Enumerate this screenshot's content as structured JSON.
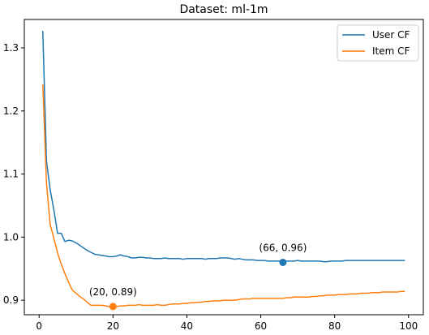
{
  "chart_data": {
    "type": "line",
    "title": "Dataset: ml-1m",
    "xlabel": "",
    "ylabel": "",
    "xlim": [
      -4,
      104
    ],
    "ylim": [
      0.877,
      1.345
    ],
    "xticks": [
      0,
      20,
      40,
      60,
      80,
      100
    ],
    "yticks": [
      0.9,
      1.0,
      1.1,
      1.2,
      1.3
    ],
    "xtick_labels": [
      "0",
      "20",
      "40",
      "60",
      "80",
      "100"
    ],
    "ytick_labels": [
      "0.9",
      "1.0",
      "1.1",
      "1.2",
      "1.3"
    ],
    "grid": false,
    "legend_position": "top-right",
    "series": [
      {
        "name": "User CF",
        "color": "#1f77b4",
        "x": [
          1,
          2,
          3,
          4,
          5,
          6,
          7,
          8,
          9,
          10,
          11,
          12,
          13,
          14,
          15,
          16,
          17,
          18,
          19,
          20,
          21,
          22,
          23,
          24,
          25,
          26,
          27,
          28,
          29,
          30,
          31,
          32,
          33,
          34,
          35,
          36,
          37,
          38,
          39,
          40,
          41,
          42,
          43,
          44,
          45,
          46,
          47,
          48,
          49,
          50,
          51,
          52,
          53,
          54,
          55,
          56,
          57,
          58,
          59,
          60,
          61,
          62,
          63,
          64,
          65,
          66,
          67,
          68,
          69,
          70,
          71,
          72,
          73,
          74,
          75,
          76,
          77,
          78,
          79,
          80,
          81,
          82,
          83,
          84,
          85,
          86,
          87,
          88,
          89,
          90,
          91,
          92,
          93,
          94,
          95,
          96,
          97,
          98,
          99
        ],
        "y": [
          1.327,
          1.12,
          1.075,
          1.043,
          1.006,
          1.006,
          0.993,
          0.995,
          0.994,
          0.991,
          0.987,
          0.983,
          0.979,
          0.976,
          0.973,
          0.972,
          0.971,
          0.97,
          0.969,
          0.969,
          0.97,
          0.972,
          0.97,
          0.969,
          0.967,
          0.967,
          0.968,
          0.968,
          0.967,
          0.967,
          0.966,
          0.966,
          0.966,
          0.967,
          0.966,
          0.966,
          0.966,
          0.966,
          0.965,
          0.966,
          0.966,
          0.966,
          0.966,
          0.966,
          0.965,
          0.966,
          0.966,
          0.966,
          0.967,
          0.967,
          0.967,
          0.966,
          0.965,
          0.966,
          0.965,
          0.964,
          0.964,
          0.964,
          0.963,
          0.963,
          0.963,
          0.962,
          0.962,
          0.962,
          0.962,
          0.961,
          0.962,
          0.962,
          0.962,
          0.963,
          0.962,
          0.962,
          0.962,
          0.962,
          0.962,
          0.962,
          0.961,
          0.961,
          0.962,
          0.962,
          0.962,
          0.962,
          0.963,
          0.963,
          0.963,
          0.963,
          0.963,
          0.963,
          0.963,
          0.963,
          0.963,
          0.963,
          0.963,
          0.963,
          0.963,
          0.963,
          0.963,
          0.963,
          0.963
        ]
      },
      {
        "name": "Item CF",
        "color": "#ff7f0e",
        "x": [
          1,
          2,
          3,
          4,
          5,
          6,
          7,
          8,
          9,
          10,
          11,
          12,
          13,
          14,
          15,
          16,
          17,
          18,
          19,
          20,
          21,
          22,
          23,
          24,
          25,
          26,
          27,
          28,
          29,
          30,
          31,
          32,
          33,
          34,
          35,
          36,
          37,
          38,
          39,
          40,
          41,
          42,
          43,
          44,
          45,
          46,
          47,
          48,
          49,
          50,
          51,
          52,
          53,
          54,
          55,
          56,
          57,
          58,
          59,
          60,
          61,
          62,
          63,
          64,
          65,
          66,
          67,
          68,
          69,
          70,
          71,
          72,
          73,
          74,
          75,
          76,
          77,
          78,
          79,
          80,
          81,
          82,
          83,
          84,
          85,
          86,
          87,
          88,
          89,
          90,
          91,
          92,
          93,
          94,
          95,
          96,
          97,
          98,
          99
        ],
        "y": [
          1.242,
          1.085,
          1.02,
          0.998,
          0.975,
          0.957,
          0.942,
          0.928,
          0.916,
          0.911,
          0.906,
          0.902,
          0.897,
          0.892,
          0.892,
          0.892,
          0.892,
          0.891,
          0.89,
          0.89,
          0.89,
          0.891,
          0.891,
          0.892,
          0.892,
          0.892,
          0.893,
          0.892,
          0.892,
          0.892,
          0.892,
          0.893,
          0.892,
          0.892,
          0.893,
          0.894,
          0.894,
          0.894,
          0.895,
          0.895,
          0.896,
          0.896,
          0.897,
          0.897,
          0.898,
          0.898,
          0.899,
          0.899,
          0.899,
          0.9,
          0.9,
          0.9,
          0.9,
          0.901,
          0.902,
          0.902,
          0.902,
          0.903,
          0.903,
          0.903,
          0.903,
          0.903,
          0.903,
          0.903,
          0.903,
          0.903,
          0.904,
          0.904,
          0.905,
          0.905,
          0.905,
          0.905,
          0.905,
          0.906,
          0.906,
          0.907,
          0.907,
          0.908,
          0.908,
          0.908,
          0.909,
          0.909,
          0.909,
          0.91,
          0.91,
          0.91,
          0.911,
          0.911,
          0.911,
          0.912,
          0.912,
          0.912,
          0.913,
          0.913,
          0.913,
          0.913,
          0.913,
          0.914,
          0.914
        ]
      }
    ],
    "markers": [
      {
        "series": 0,
        "x": 66,
        "y": 0.96,
        "label": "(66, 0.96)"
      },
      {
        "series": 1,
        "x": 20,
        "y": 0.89,
        "label": "(20, 0.89)"
      }
    ]
  }
}
